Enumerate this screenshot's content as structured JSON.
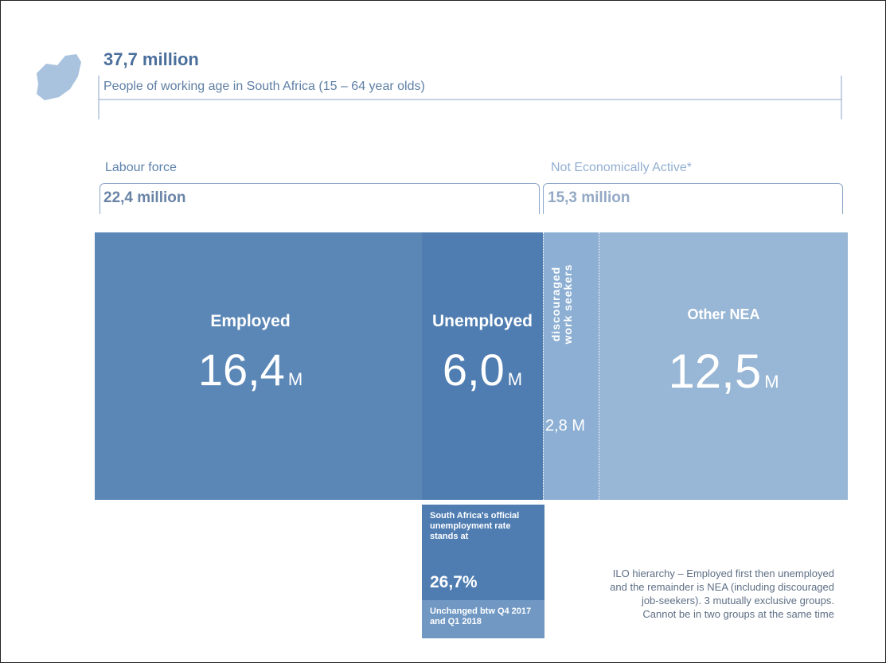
{
  "header": {
    "title": "37,7 million",
    "subtitle": "People of working age in South Africa (15 – 64 year olds)"
  },
  "groups": [
    {
      "label": "Labour force",
      "value": "22,4 million"
    },
    {
      "label": "Not Economically Active*",
      "value": "15,3 million"
    }
  ],
  "blocks": [
    {
      "label": "Employed",
      "value": "16,4",
      "unit": "M"
    },
    {
      "label": "Unemployed",
      "value": "6,0",
      "unit": "M"
    },
    {
      "label_lines": [
        "discouraged",
        "work seekers"
      ],
      "value": "2,8 M"
    },
    {
      "label": "Other NEA",
      "value": "12,5",
      "unit": "M"
    }
  ],
  "rate_box": {
    "text": "South Africa's official unemployment rate stands at",
    "value": "26,7%",
    "footnote": "Unchanged btw Q4 2017 and Q1 2018"
  },
  "note_lines": [
    "ILO hierarchy – Employed first then unemployed",
    "and the remainder is NEA (including discouraged",
    "job-seekers). 3 mutually exclusive groups.",
    "Cannot be in two groups at the same time"
  ]
}
